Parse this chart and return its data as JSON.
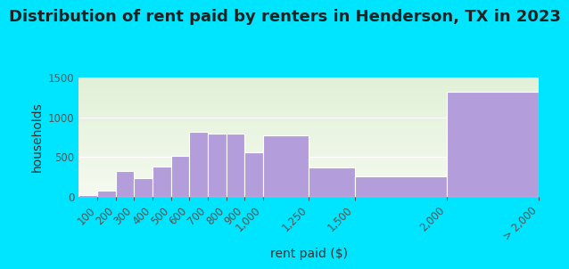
{
  "title": "Distribution of rent paid by renters in Henderson, TX in 2023",
  "xlabel": "rent paid ($)",
  "ylabel": "households",
  "background_outer": "#00e5ff",
  "bar_color": "#b39ddb",
  "bar_edge_color": "#ffffff",
  "bin_edges": [
    0,
    100,
    200,
    300,
    400,
    500,
    600,
    700,
    800,
    900,
    1000,
    1250,
    1500,
    2000,
    2500
  ],
  "bin_labels": [
    "100",
    "200",
    "300",
    "400",
    "500",
    "600",
    "700",
    "800",
    "900",
    "1,000",
    "1,250",
    "1,500",
    "2,000",
    "> 2,000"
  ],
  "values": [
    25,
    75,
    325,
    230,
    375,
    510,
    820,
    790,
    790,
    565,
    770,
    370,
    255,
    1325
  ],
  "ylim": [
    0,
    1500
  ],
  "yticks": [
    0,
    500,
    1000,
    1500
  ],
  "title_fontsize": 13,
  "axis_label_fontsize": 10,
  "tick_fontsize": 8.5
}
